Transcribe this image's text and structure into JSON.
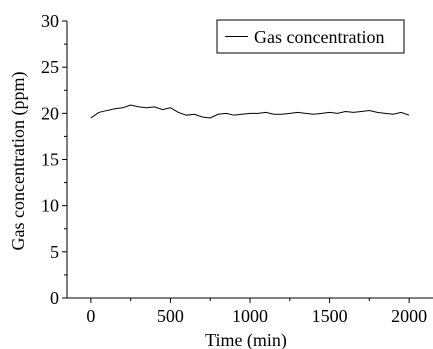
{
  "chart_data": {
    "type": "line",
    "title": "",
    "xlabel": "Time (min)",
    "ylabel": "Gas concentration (ppm)",
    "xlim": [
      -150,
      2150
    ],
    "ylim": [
      0,
      30
    ],
    "x_ticks": [
      0,
      500,
      1000,
      1500,
      2000
    ],
    "y_ticks": [
      0,
      5,
      10,
      15,
      20,
      25,
      30
    ],
    "grid": false,
    "legend": {
      "placement": "top-right",
      "entries": [
        "Gas concentration"
      ]
    },
    "series": [
      {
        "name": "Gas concentration",
        "x": [
          0,
          50,
          100,
          150,
          200,
          250,
          300,
          350,
          400,
          450,
          500,
          550,
          600,
          650,
          700,
          750,
          800,
          850,
          900,
          950,
          1000,
          1050,
          1100,
          1150,
          1200,
          1250,
          1300,
          1350,
          1400,
          1450,
          1500,
          1550,
          1600,
          1650,
          1700,
          1750,
          1800,
          1850,
          1900,
          1950,
          2000
        ],
        "values": [
          19.5,
          20.1,
          20.3,
          20.5,
          20.6,
          20.9,
          20.7,
          20.6,
          20.7,
          20.4,
          20.6,
          20.1,
          19.8,
          19.9,
          19.6,
          19.5,
          19.9,
          20.0,
          19.8,
          19.9,
          20.0,
          20.0,
          20.1,
          19.9,
          19.9,
          20.0,
          20.1,
          20.0,
          19.9,
          20.0,
          20.1,
          20.0,
          20.2,
          20.1,
          20.2,
          20.3,
          20.1,
          20.0,
          19.9,
          20.1,
          19.8
        ]
      }
    ]
  },
  "colors": {
    "axis": "#000000",
    "series": "#000000",
    "background": "#ffffff"
  }
}
